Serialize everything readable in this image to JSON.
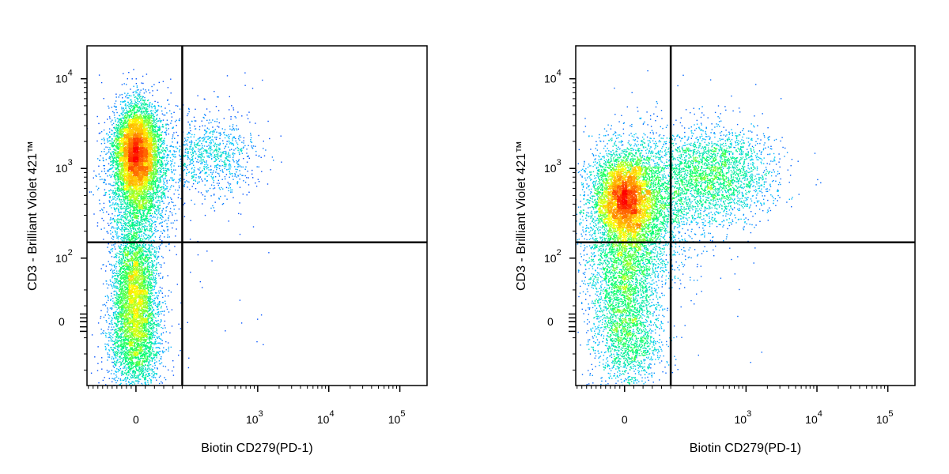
{
  "chart_data": [
    {
      "type": "scatter",
      "subtype": "flow-cytometry-density-dot-plot",
      "xlabel": "Biotin CD279(PD-1)",
      "ylabel": "CD3 - Brilliant Violet 421™",
      "x_scale": "biexponential",
      "y_scale": "biexponential",
      "x_ticks": [
        {
          "value": 0,
          "base": "0",
          "exp": ""
        },
        {
          "value": 1000,
          "base": "10",
          "exp": "3"
        },
        {
          "value": 10000,
          "base": "10",
          "exp": "4"
        },
        {
          "value": 100000,
          "base": "10",
          "exp": "5"
        }
      ],
      "y_ticks": [
        {
          "value": 0,
          "base": "0",
          "exp": ""
        },
        {
          "value": 100,
          "base": "10",
          "exp": "2"
        },
        {
          "value": 1000,
          "base": "10",
          "exp": "3"
        },
        {
          "value": 10000,
          "base": "10",
          "exp": "4"
        }
      ],
      "quadrant_gate": {
        "x": 100,
        "y": 150
      },
      "populations": [
        {
          "center_x": 0,
          "center_y": 1400,
          "relative_density": 1.0
        },
        {
          "center_x": 0,
          "center_y": 30,
          "relative_density": 0.55
        },
        {
          "center_x": 200,
          "center_y": 1500,
          "relative_density": 0.08
        }
      ],
      "grid": false,
      "legend": "none"
    },
    {
      "type": "scatter",
      "subtype": "flow-cytometry-density-dot-plot",
      "xlabel": "Biotin CD279(PD-1)",
      "ylabel": "CD3 - Brilliant Violet 421™",
      "x_scale": "biexponential",
      "y_scale": "biexponential",
      "x_ticks": [
        {
          "value": 0,
          "base": "0",
          "exp": ""
        },
        {
          "value": 1000,
          "base": "10",
          "exp": "3"
        },
        {
          "value": 10000,
          "base": "10",
          "exp": "4"
        },
        {
          "value": 100000,
          "base": "10",
          "exp": "5"
        }
      ],
      "y_ticks": [
        {
          "value": 0,
          "base": "0",
          "exp": ""
        },
        {
          "value": 100,
          "base": "10",
          "exp": "2"
        },
        {
          "value": 1000,
          "base": "10",
          "exp": "3"
        },
        {
          "value": 10000,
          "base": "10",
          "exp": "4"
        }
      ],
      "quadrant_gate": {
        "x": 100,
        "y": 150
      },
      "populations": [
        {
          "center_x": 0,
          "center_y": 500,
          "relative_density": 1.0
        },
        {
          "center_x": 400,
          "center_y": 1000,
          "relative_density": 0.6
        },
        {
          "center_x": 0,
          "center_y": 40,
          "relative_density": 0.35
        }
      ],
      "grid": false,
      "legend": "none"
    }
  ],
  "colors": {
    "density_scale": [
      "#0000ff",
      "#00c8ff",
      "#00ff66",
      "#ffff00",
      "#ff8800",
      "#ff0000"
    ],
    "axes": "#000000",
    "gate_lines": "#000000"
  }
}
